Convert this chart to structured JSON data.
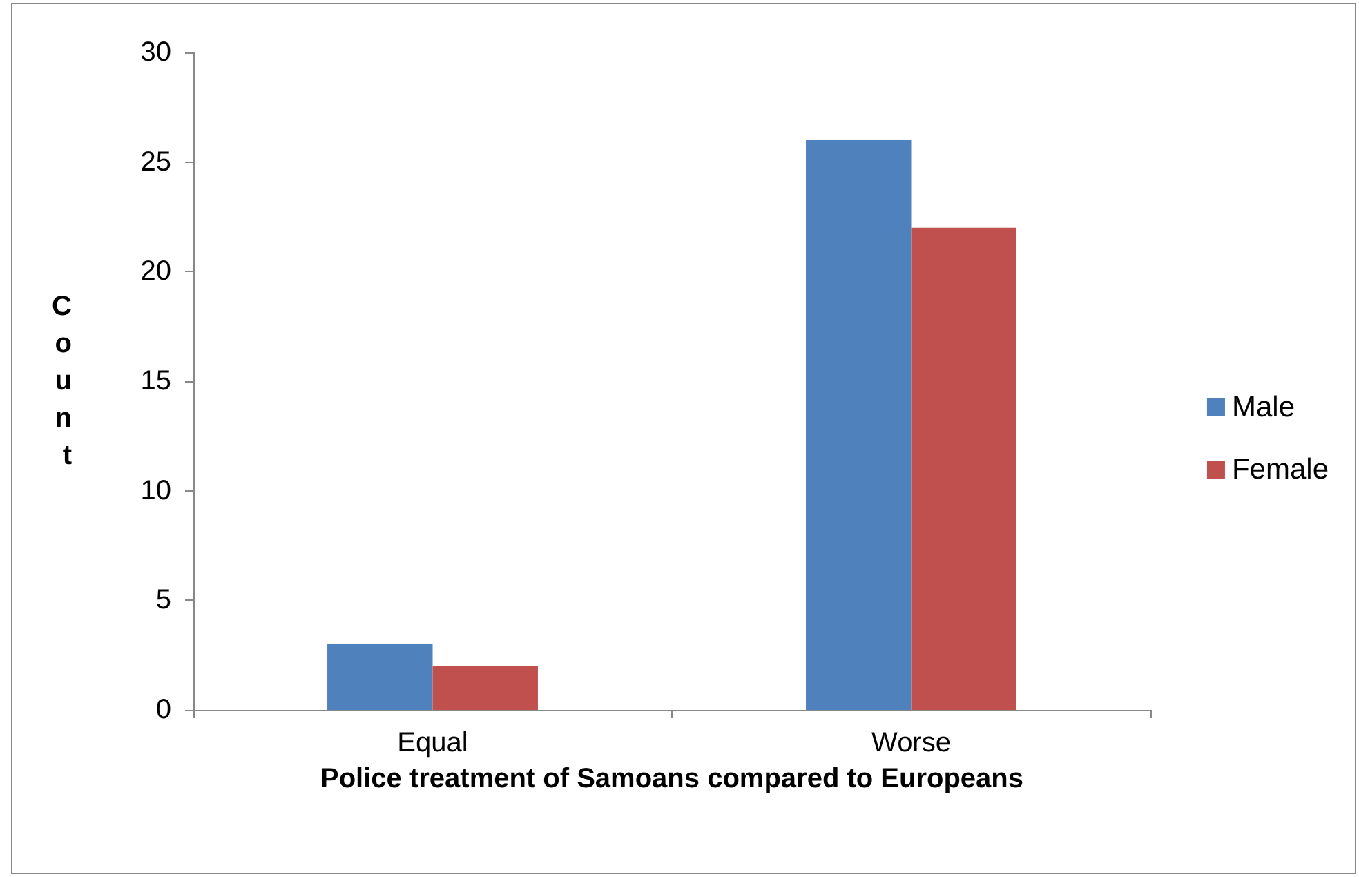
{
  "chart_data": {
    "type": "bar",
    "xlabel": "Police treatment of Samoans compared to Europeans",
    "ylabel": "Count",
    "categories": [
      "Equal",
      "Worse"
    ],
    "series": [
      {
        "name": "Male",
        "color": "#4f81bd",
        "values": [
          3,
          26
        ]
      },
      {
        "name": "Female",
        "color": "#c0504d",
        "values": [
          2,
          22
        ]
      }
    ],
    "ylim": [
      0,
      30
    ],
    "yticks": [
      0,
      5,
      10,
      15,
      20,
      25,
      30
    ],
    "grid": false,
    "legend": "right"
  }
}
